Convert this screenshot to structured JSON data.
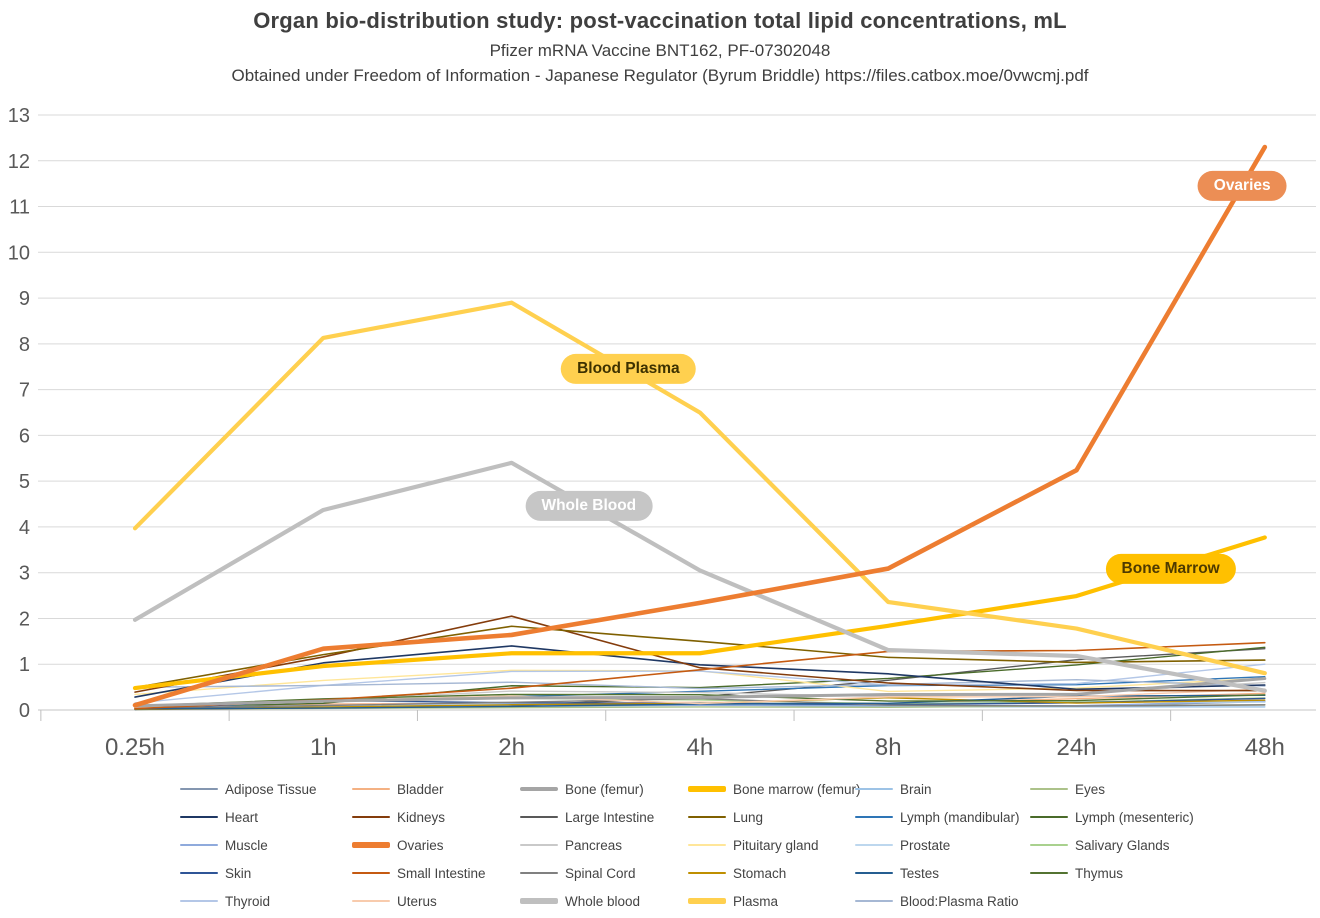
{
  "header": {
    "title": "Organ bio-distribution study: post-vaccination total lipid concentrations, mL",
    "subtitle": "Pfizer mRNA Vaccine BNT162, PF-07302048",
    "source_line": "Obtained under Freedom of Information - Japanese Regulator (Byrum Briddle) https://files.catbox.moe/0vwcmj.pdf"
  },
  "chart_data": {
    "type": "line",
    "title": "Organ bio-distribution study: post-vaccination total lipid concentrations, mL",
    "xlabel": "",
    "ylabel": "",
    "x_categories": [
      "0.25h",
      "1h",
      "2h",
      "4h",
      "8h",
      "24h",
      "48h"
    ],
    "y_ticks": [
      0,
      1,
      2,
      3,
      4,
      5,
      6,
      7,
      8,
      9,
      10,
      11,
      12,
      13
    ],
    "ylim": [
      0,
      13
    ],
    "grid": true,
    "legend_position": "bottom",
    "axis_color": "#595959",
    "gridline_color": "#d9d9d9",
    "series": [
      {
        "name": "Adipose Tissue",
        "color": "#8496b0",
        "width": 1.4,
        "values": [
          0.057,
          0.1,
          0.126,
          0.128,
          0.093,
          0.084,
          0.181
        ]
      },
      {
        "name": "Bladder",
        "color": "#f4b183",
        "width": 1.4,
        "values": [
          0.041,
          0.13,
          0.146,
          0.167,
          0.148,
          0.247,
          0.365
        ]
      },
      {
        "name": "Bone (femur)",
        "color": "#a5a5a5",
        "width": 3,
        "values": [
          0.091,
          0.195,
          0.266,
          0.276,
          0.34,
          0.342,
          0.687
        ]
      },
      {
        "name": "Bone marrow (femur)",
        "color": "#ffc000",
        "width": 4.2,
        "values": [
          0.479,
          0.96,
          1.24,
          1.24,
          1.84,
          2.49,
          3.77
        ]
      },
      {
        "name": "Brain",
        "color": "#9dc3e6",
        "width": 1.4,
        "values": [
          0.045,
          0.1,
          0.138,
          0.115,
          0.073,
          0.069,
          0.068
        ]
      },
      {
        "name": "Eyes",
        "color": "#acc28a",
        "width": 1.4,
        "values": [
          0.01,
          0.035,
          0.052,
          0.067,
          0.059,
          0.091,
          0.112
        ]
      },
      {
        "name": "Heart",
        "color": "#1f3864",
        "width": 1.6,
        "values": [
          0.282,
          1.03,
          1.4,
          0.987,
          0.79,
          0.451,
          0.546
        ]
      },
      {
        "name": "Kidneys",
        "color": "#843c0c",
        "width": 1.6,
        "values": [
          0.391,
          1.16,
          2.05,
          0.924,
          0.59,
          0.426,
          0.425
        ]
      },
      {
        "name": "Large Intestine",
        "color": "#595959",
        "width": 1.4,
        "values": [
          0.013,
          0.048,
          0.093,
          0.287,
          0.649,
          1.1,
          1.34
        ]
      },
      {
        "name": "Lung",
        "color": "#7f6000",
        "width": 1.6,
        "values": [
          0.492,
          1.21,
          1.83,
          1.5,
          1.15,
          1.04,
          1.09
        ]
      },
      {
        "name": "Lymph (mandibular)",
        "color": "#2e75b6",
        "width": 1.4,
        "values": [
          0.064,
          0.189,
          0.29,
          0.408,
          0.534,
          0.554,
          0.727
        ]
      },
      {
        "name": "Lymph (mesenteric)",
        "color": "#4a6b2a",
        "width": 1.4,
        "values": [
          0.05,
          0.146,
          0.53,
          0.489,
          0.689,
          0.985,
          1.37
        ]
      },
      {
        "name": "Muscle",
        "color": "#8faadc",
        "width": 1.4,
        "values": [
          0.021,
          0.061,
          0.084,
          0.103,
          0.096,
          0.095,
          0.192
        ]
      },
      {
        "name": "Ovaries",
        "color": "#ed7d31",
        "width": 4.6,
        "values": [
          0.104,
          1.34,
          1.64,
          2.34,
          3.09,
          5.24,
          12.3
        ]
      },
      {
        "name": "Pancreas",
        "color": "#c9c9c9",
        "width": 1.4,
        "values": [
          0.081,
          0.207,
          0.414,
          0.38,
          0.294,
          0.358,
          0.599
        ]
      },
      {
        "name": "Pituitary gland",
        "color": "#ffe699",
        "width": 1.4,
        "values": [
          0.339,
          0.645,
          0.868,
          0.854,
          0.405,
          0.478,
          0.694
        ]
      },
      {
        "name": "Prostate",
        "color": "#bdd7ee",
        "width": 1.4,
        "values": [
          0.061,
          0.091,
          0.128,
          0.157,
          0.15,
          0.183,
          0.17
        ]
      },
      {
        "name": "Salivary Glands",
        "color": "#a9d18e",
        "width": 1.4,
        "values": [
          0.084,
          0.193,
          0.255,
          0.22,
          0.135,
          0.17,
          0.264
        ]
      },
      {
        "name": "Skin",
        "color": "#2f5597",
        "width": 1.4,
        "values": [
          0.013,
          0.208,
          0.159,
          0.145,
          0.119,
          0.157,
          0.253
        ]
      },
      {
        "name": "Small Intestine",
        "color": "#c55a11",
        "width": 1.6,
        "values": [
          0.03,
          0.221,
          0.476,
          0.879,
          1.28,
          1.3,
          1.47
        ]
      },
      {
        "name": "Spinal Cord",
        "color": "#808080",
        "width": 1.4,
        "values": [
          0.043,
          0.097,
          0.169,
          0.25,
          0.106,
          0.085,
          0.112
        ]
      },
      {
        "name": "Stomach",
        "color": "#bf8f00",
        "width": 1.4,
        "values": [
          0.017,
          0.065,
          0.115,
          0.144,
          0.268,
          0.152,
          0.215
        ]
      },
      {
        "name": "Testes",
        "color": "#255e91",
        "width": 1.4,
        "values": [
          0.031,
          0.042,
          0.079,
          0.129,
          0.146,
          0.304,
          0.32
        ]
      },
      {
        "name": "Thymus",
        "color": "#537331",
        "width": 1.4,
        "values": [
          0.088,
          0.243,
          0.34,
          0.335,
          0.196,
          0.207,
          0.331
        ]
      },
      {
        "name": "Thyroid",
        "color": "#b4c7e7",
        "width": 1.4,
        "values": [
          0.155,
          0.536,
          0.842,
          0.851,
          0.544,
          0.578,
          1.0
        ]
      },
      {
        "name": "Uterus",
        "color": "#f8cbad",
        "width": 1.4,
        "values": [
          0.043,
          0.203,
          0.305,
          0.14,
          0.287,
          0.289,
          0.456
        ]
      },
      {
        "name": "Whole blood",
        "color": "#bfbfbf",
        "width": 4.2,
        "values": [
          1.97,
          4.37,
          5.4,
          3.05,
          1.31,
          1.18,
          0.421
        ]
      },
      {
        "name": "Plasma",
        "color": "#ffd04f",
        "width": 4.2,
        "values": [
          3.97,
          8.13,
          8.9,
          6.5,
          2.36,
          1.78,
          0.805
        ]
      },
      {
        "name": "Blood:Plasma Ratio",
        "color": "#a6b8d4",
        "width": 1.4,
        "values": [
          0.495,
          0.537,
          0.607,
          0.469,
          0.555,
          0.663,
          0.523
        ]
      }
    ],
    "annotations": [
      {
        "text": "Blood Plasma",
        "bg": "#ffd04f",
        "text_color": "#3d3100",
        "x_index": 2.62,
        "value": 7.45
      },
      {
        "text": "Whole Blood",
        "bg": "#c6c6c6",
        "text_color": "#ffffff",
        "x_index": 2.41,
        "value": 4.45
      },
      {
        "text": "Bone Marrow",
        "bg": "#ffc000",
        "text_color": "#4e3a00",
        "x_index": 5.5,
        "value": 3.08
      },
      {
        "text": "Ovaries",
        "bg": "#ec8e55",
        "text_color": "#ffffff",
        "x_index": 5.88,
        "value": 11.45
      }
    ]
  }
}
